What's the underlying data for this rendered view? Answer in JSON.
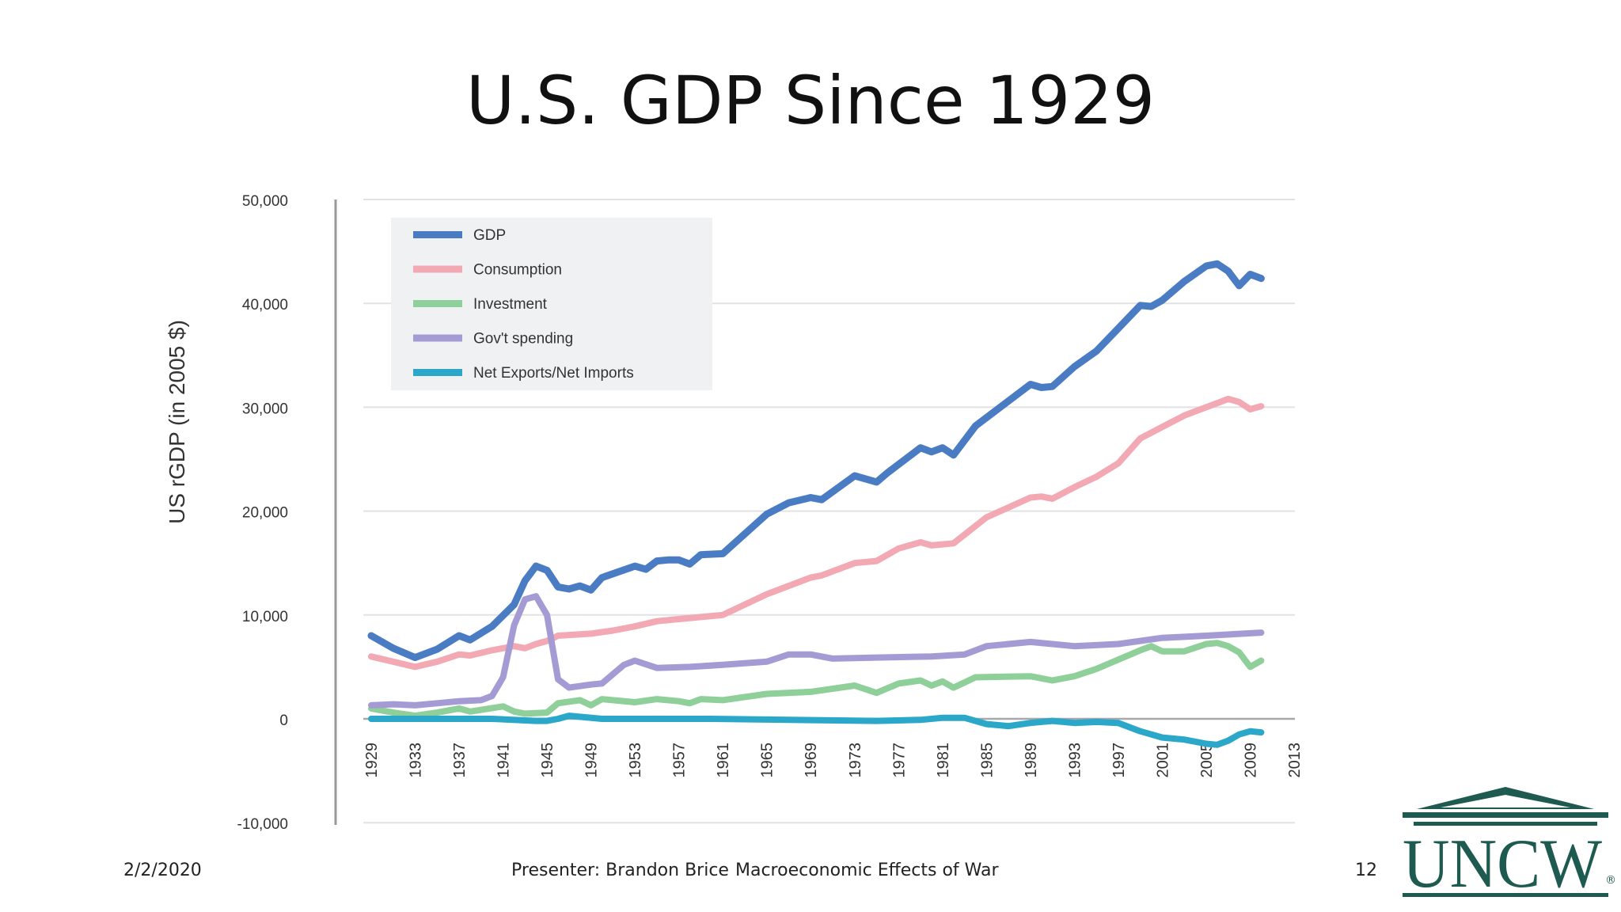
{
  "slide": {
    "title": "U.S. GDP Since 1929",
    "footer": {
      "date": "2/2/2020",
      "presenter": "Presenter: Brandon Brice",
      "topic": "Macroeconomic Effects of War",
      "slide_number": "12"
    },
    "logo": {
      "text": "UNCW",
      "mark": "®",
      "color": "#1e5a50",
      "icon": "building-pediment-icon"
    }
  },
  "chart_data": {
    "type": "line",
    "ylabel": "US rGDP (in 2005 $)",
    "ylim": [
      -10000,
      50000
    ],
    "yticks": [
      50000,
      40000,
      30000,
      20000,
      10000,
      0,
      -10000
    ],
    "ytick_labels": [
      "50,000",
      "40,000",
      "30,000",
      "20,000",
      "10,000",
      "0",
      "-10,000"
    ],
    "xlim": [
      1929,
      2013
    ],
    "xticks": [
      1929,
      1933,
      1937,
      1941,
      1945,
      1949,
      1953,
      1957,
      1961,
      1965,
      1969,
      1973,
      1977,
      1981,
      1985,
      1989,
      1993,
      1997,
      2001,
      2005,
      2009,
      2013
    ],
    "xtick_labels": [
      "1929",
      "1933",
      "1937",
      "1941",
      "1945",
      "1949",
      "1953",
      "1957",
      "1961",
      "1965",
      "1969",
      "1973",
      "1977",
      "1981",
      "1985",
      "1989",
      "1993",
      "1997",
      "2001",
      "2005",
      "2009",
      "2013"
    ],
    "grid": true,
    "legend_position": "top-left",
    "series": [
      {
        "name": "GDP",
        "color": "#4a7cc4",
        "x": [
          1929,
          1931,
          1933,
          1935,
          1937,
          1938,
          1940,
          1942,
          1943,
          1944,
          1945,
          1946,
          1947,
          1948,
          1949,
          1950,
          1953,
          1954,
          1955,
          1956,
          1957,
          1958,
          1959,
          1961,
          1965,
          1967,
          1969,
          1970,
          1973,
          1975,
          1976,
          1979,
          1980,
          1981,
          1982,
          1984,
          1989,
          1990,
          1991,
          1993,
          1995,
          1997,
          1999,
          2000,
          2001,
          2003,
          2005,
          2006,
          2007,
          2008,
          2009,
          2010
        ],
        "y": [
          8000,
          6800,
          5900,
          6700,
          8000,
          7600,
          8900,
          11000,
          13300,
          14700,
          14300,
          12700,
          12500,
          12800,
          12400,
          13600,
          14700,
          14400,
          15200,
          15300,
          15300,
          14900,
          15800,
          15900,
          19700,
          20800,
          21300,
          21100,
          23400,
          22800,
          23700,
          26100,
          25700,
          26100,
          25400,
          28200,
          32200,
          31900,
          32000,
          33900,
          35400,
          37600,
          39800,
          39700,
          40300,
          42100,
          43600,
          43800,
          43100,
          41700,
          42800,
          42400
        ]
      },
      {
        "name": "Consumption",
        "color": "#f2a9b4",
        "x": [
          1929,
          1931,
          1933,
          1935,
          1937,
          1938,
          1940,
          1942,
          1943,
          1944,
          1945,
          1946,
          1949,
          1951,
          1953,
          1955,
          1957,
          1959,
          1961,
          1965,
          1969,
          1970,
          1973,
          1975,
          1977,
          1979,
          1980,
          1981,
          1982,
          1985,
          1989,
          1990,
          1991,
          1993,
          1995,
          1997,
          1999,
          2001,
          2003,
          2005,
          2006,
          2007,
          2008,
          2009,
          2010
        ],
        "y": [
          6000,
          5500,
          5000,
          5500,
          6200,
          6100,
          6600,
          7000,
          6800,
          7200,
          7500,
          8000,
          8200,
          8500,
          8900,
          9400,
          9600,
          9800,
          10000,
          12000,
          13600,
          13800,
          15000,
          15200,
          16400,
          17000,
          16700,
          16800,
          16900,
          19400,
          21300,
          21400,
          21200,
          22300,
          23300,
          24600,
          27000,
          28100,
          29200,
          30000,
          30400,
          30800,
          30500,
          29800,
          30100
        ]
      },
      {
        "name": "Investment",
        "color": "#8fcf9a",
        "x": [
          1929,
          1931,
          1933,
          1935,
          1937,
          1938,
          1941,
          1942,
          1943,
          1945,
          1946,
          1948,
          1949,
          1950,
          1953,
          1955,
          1957,
          1958,
          1959,
          1961,
          1965,
          1969,
          1973,
          1975,
          1977,
          1979,
          1980,
          1981,
          1982,
          1984,
          1989,
          1991,
          1993,
          1995,
          1997,
          1999,
          2000,
          2001,
          2003,
          2005,
          2006,
          2007,
          2008,
          2009,
          2010
        ],
        "y": [
          1000,
          600,
          300,
          600,
          1000,
          700,
          1200,
          700,
          500,
          600,
          1500,
          1800,
          1300,
          1900,
          1600,
          1900,
          1700,
          1500,
          1900,
          1800,
          2400,
          2600,
          3200,
          2500,
          3400,
          3700,
          3200,
          3600,
          3000,
          4000,
          4100,
          3700,
          4100,
          4800,
          5700,
          6600,
          7000,
          6500,
          6500,
          7200,
          7300,
          7000,
          6400,
          5000,
          5600
        ]
      },
      {
        "name": "Gov't spending",
        "color": "#a49bd4",
        "x": [
          1929,
          1931,
          1933,
          1935,
          1937,
          1939,
          1940,
          1941,
          1942,
          1943,
          1944,
          1945,
          1946,
          1947,
          1949,
          1950,
          1951,
          1952,
          1953,
          1955,
          1958,
          1961,
          1965,
          1967,
          1969,
          1971,
          1975,
          1980,
          1983,
          1985,
          1989,
          1993,
          1997,
          2001,
          2005,
          2010
        ],
        "y": [
          1300,
          1400,
          1300,
          1500,
          1700,
          1800,
          2200,
          4000,
          9000,
          11500,
          11800,
          10000,
          3800,
          3000,
          3300,
          3400,
          4300,
          5200,
          5600,
          4900,
          5000,
          5200,
          5500,
          6200,
          6200,
          5800,
          5900,
          6000,
          6200,
          7000,
          7400,
          7000,
          7200,
          7800,
          8000,
          8300
        ]
      },
      {
        "name": "Net Exports/Net Imports",
        "color": "#2ba8c9",
        "x": [
          1929,
          1940,
          1944,
          1945,
          1946,
          1947,
          1950,
          1960,
          1975,
          1979,
          1981,
          1983,
          1985,
          1987,
          1989,
          1991,
          1993,
          1995,
          1997,
          1999,
          2001,
          2003,
          2005,
          2006,
          2007,
          2008,
          2009,
          2010
        ],
        "y": [
          0,
          0,
          -200,
          -200,
          0,
          300,
          0,
          0,
          -200,
          -100,
          100,
          100,
          -500,
          -700,
          -400,
          -200,
          -400,
          -300,
          -400,
          -1200,
          -1800,
          -2000,
          -2400,
          -2500,
          -2100,
          -1500,
          -1200,
          -1300
        ]
      }
    ]
  }
}
